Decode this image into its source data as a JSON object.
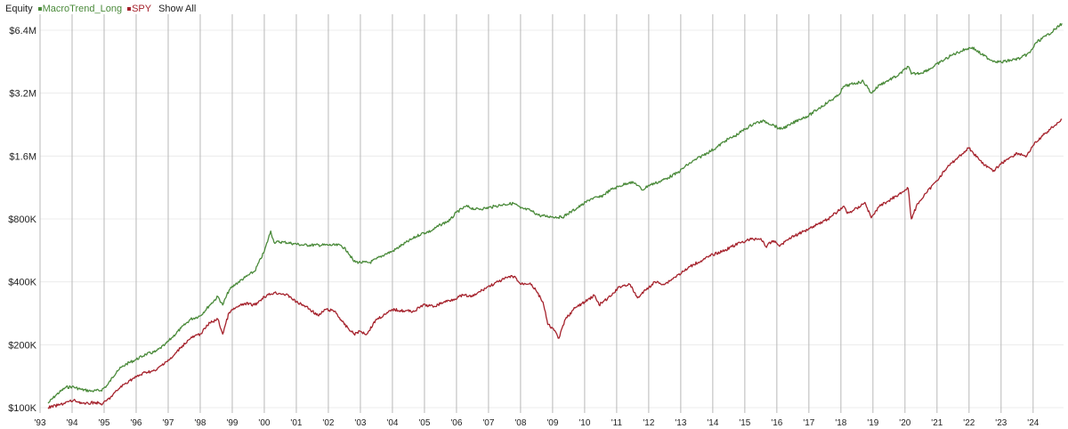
{
  "legend": {
    "title": "Equity",
    "series_labels": [
      "MacroTrend_Long",
      "SPY"
    ],
    "show_all": "Show All"
  },
  "colors": {
    "macrotrend": "#4a8a3a",
    "spy": "#a5222c",
    "gridline": "#b8b8b8",
    "hgrid": "#ececec"
  },
  "chart_data": {
    "type": "line",
    "y_scale": "log",
    "ylim": [
      100000,
      7200000
    ],
    "xlim": [
      1993.0,
      2024.95
    ],
    "ytick_values": [
      100000,
      200000,
      400000,
      800000,
      1600000,
      3200000,
      6400000
    ],
    "ytick_labels": [
      "$100K",
      "$200K",
      "$400K",
      "$800K",
      "$1.6M",
      "$3.2M",
      "$6.4M"
    ],
    "xtick_values": [
      1993,
      1994,
      1995,
      1996,
      1997,
      1998,
      1999,
      2000,
      2001,
      2002,
      2003,
      2004,
      2005,
      2006,
      2007,
      2008,
      2009,
      2010,
      2011,
      2012,
      2013,
      2014,
      2015,
      2016,
      2017,
      2018,
      2019,
      2020,
      2021,
      2022,
      2023,
      2024
    ],
    "xtick_labels": [
      "'93",
      "'94",
      "'95",
      "'96",
      "'97",
      "'98",
      "'99",
      "'00",
      "'01",
      "'02",
      "'03",
      "'04",
      "'05",
      "'06",
      "'07",
      "'08",
      "'09",
      "'10",
      "'11",
      "'12",
      "'13",
      "'14",
      "'15",
      "'16",
      "'17",
      "'18",
      "'19",
      "'20",
      "'21",
      "'22",
      "'23",
      "'24"
    ],
    "series": [
      {
        "name": "MacroTrend_Long",
        "points": [
          [
            1993.25,
            105000
          ],
          [
            1993.5,
            115000
          ],
          [
            1993.8,
            125000
          ],
          [
            1994.0,
            126000
          ],
          [
            1994.3,
            122000
          ],
          [
            1994.6,
            120000
          ],
          [
            1994.9,
            121000
          ],
          [
            1995.1,
            128000
          ],
          [
            1995.4,
            150000
          ],
          [
            1995.7,
            162000
          ],
          [
            1996.0,
            170000
          ],
          [
            1996.3,
            180000
          ],
          [
            1996.6,
            185000
          ],
          [
            1996.9,
            200000
          ],
          [
            1997.1,
            215000
          ],
          [
            1997.4,
            240000
          ],
          [
            1997.7,
            265000
          ],
          [
            1998.0,
            275000
          ],
          [
            1998.3,
            310000
          ],
          [
            1998.55,
            340000
          ],
          [
            1998.7,
            310000
          ],
          [
            1998.9,
            365000
          ],
          [
            1999.1,
            390000
          ],
          [
            1999.4,
            420000
          ],
          [
            1999.7,
            450000
          ],
          [
            2000.0,
            560000
          ],
          [
            2000.2,
            700000
          ],
          [
            2000.3,
            620000
          ],
          [
            2000.6,
            620000
          ],
          [
            2000.9,
            610000
          ],
          [
            2001.2,
            600000
          ],
          [
            2001.6,
            600000
          ],
          [
            2002.0,
            600000
          ],
          [
            2002.4,
            598000
          ],
          [
            2002.6,
            560000
          ],
          [
            2002.8,
            500000
          ],
          [
            2003.0,
            495000
          ],
          [
            2003.3,
            495000
          ],
          [
            2003.5,
            515000
          ],
          [
            2003.8,
            545000
          ],
          [
            2004.0,
            560000
          ],
          [
            2004.3,
            600000
          ],
          [
            2004.6,
            640000
          ],
          [
            2004.9,
            680000
          ],
          [
            2005.2,
            700000
          ],
          [
            2005.5,
            750000
          ],
          [
            2005.8,
            790000
          ],
          [
            2006.0,
            860000
          ],
          [
            2006.3,
            920000
          ],
          [
            2006.6,
            890000
          ],
          [
            2006.9,
            900000
          ],
          [
            2007.2,
            920000
          ],
          [
            2007.5,
            940000
          ],
          [
            2007.8,
            950000
          ],
          [
            2008.0,
            900000
          ],
          [
            2008.3,
            880000
          ],
          [
            2008.6,
            830000
          ],
          [
            2009.0,
            820000
          ],
          [
            2009.3,
            815000
          ],
          [
            2009.6,
            870000
          ],
          [
            2009.9,
            930000
          ],
          [
            2010.2,
            1000000
          ],
          [
            2010.5,
            1020000
          ],
          [
            2010.8,
            1100000
          ],
          [
            2011.1,
            1150000
          ],
          [
            2011.4,
            1200000
          ],
          [
            2011.6,
            1180000
          ],
          [
            2011.8,
            1100000
          ],
          [
            2012.0,
            1160000
          ],
          [
            2012.3,
            1200000
          ],
          [
            2012.6,
            1260000
          ],
          [
            2012.9,
            1330000
          ],
          [
            2013.2,
            1450000
          ],
          [
            2013.5,
            1550000
          ],
          [
            2013.8,
            1650000
          ],
          [
            2014.1,
            1750000
          ],
          [
            2014.4,
            1900000
          ],
          [
            2014.7,
            2000000
          ],
          [
            2015.0,
            2150000
          ],
          [
            2015.3,
            2300000
          ],
          [
            2015.6,
            2350000
          ],
          [
            2015.9,
            2250000
          ],
          [
            2016.1,
            2150000
          ],
          [
            2016.4,
            2250000
          ],
          [
            2016.7,
            2400000
          ],
          [
            2017.0,
            2500000
          ],
          [
            2017.3,
            2700000
          ],
          [
            2017.6,
            2900000
          ],
          [
            2017.9,
            3100000
          ],
          [
            2018.1,
            3450000
          ],
          [
            2018.4,
            3550000
          ],
          [
            2018.7,
            3650000
          ],
          [
            2018.95,
            3200000
          ],
          [
            2019.2,
            3500000
          ],
          [
            2019.5,
            3700000
          ],
          [
            2019.8,
            3900000
          ],
          [
            2020.1,
            4300000
          ],
          [
            2020.2,
            3950000
          ],
          [
            2020.5,
            4000000
          ],
          [
            2020.8,
            4200000
          ],
          [
            2021.1,
            4500000
          ],
          [
            2021.5,
            4900000
          ],
          [
            2021.9,
            5200000
          ],
          [
            2022.1,
            5300000
          ],
          [
            2022.4,
            4900000
          ],
          [
            2022.7,
            4600000
          ],
          [
            2023.0,
            4500000
          ],
          [
            2023.3,
            4600000
          ],
          [
            2023.6,
            4700000
          ],
          [
            2023.9,
            5000000
          ],
          [
            2024.1,
            5600000
          ],
          [
            2024.4,
            6000000
          ],
          [
            2024.7,
            6500000
          ],
          [
            2024.9,
            6900000
          ]
        ]
      },
      {
        "name": "SPY",
        "points": [
          [
            1993.25,
            100000
          ],
          [
            1993.6,
            103000
          ],
          [
            1993.9,
            107000
          ],
          [
            1994.1,
            108000
          ],
          [
            1994.4,
            104000
          ],
          [
            1994.7,
            106000
          ],
          [
            1994.95,
            104000
          ],
          [
            1995.2,
            112000
          ],
          [
            1995.5,
            125000
          ],
          [
            1995.8,
            135000
          ],
          [
            1996.0,
            140000
          ],
          [
            1996.3,
            148000
          ],
          [
            1996.6,
            150000
          ],
          [
            1996.9,
            165000
          ],
          [
            1997.1,
            172000
          ],
          [
            1997.4,
            195000
          ],
          [
            1997.7,
            215000
          ],
          [
            1998.0,
            225000
          ],
          [
            1998.3,
            255000
          ],
          [
            1998.55,
            265000
          ],
          [
            1998.7,
            225000
          ],
          [
            1998.9,
            285000
          ],
          [
            1999.1,
            300000
          ],
          [
            1999.4,
            315000
          ],
          [
            1999.7,
            310000
          ],
          [
            2000.0,
            340000
          ],
          [
            2000.3,
            355000
          ],
          [
            2000.6,
            350000
          ],
          [
            2000.8,
            340000
          ],
          [
            2001.0,
            320000
          ],
          [
            2001.3,
            305000
          ],
          [
            2001.7,
            275000
          ],
          [
            2001.9,
            295000
          ],
          [
            2002.2,
            290000
          ],
          [
            2002.5,
            250000
          ],
          [
            2002.8,
            225000
          ],
          [
            2003.0,
            232000
          ],
          [
            2003.2,
            225000
          ],
          [
            2003.5,
            265000
          ],
          [
            2003.8,
            280000
          ],
          [
            2004.0,
            295000
          ],
          [
            2004.4,
            290000
          ],
          [
            2004.7,
            290000
          ],
          [
            2004.95,
            310000
          ],
          [
            2005.3,
            305000
          ],
          [
            2005.6,
            320000
          ],
          [
            2005.9,
            330000
          ],
          [
            2006.2,
            345000
          ],
          [
            2006.5,
            340000
          ],
          [
            2006.8,
            365000
          ],
          [
            2007.0,
            380000
          ],
          [
            2007.3,
            400000
          ],
          [
            2007.6,
            420000
          ],
          [
            2007.8,
            425000
          ],
          [
            2008.0,
            390000
          ],
          [
            2008.3,
            395000
          ],
          [
            2008.5,
            360000
          ],
          [
            2008.7,
            320000
          ],
          [
            2008.85,
            250000
          ],
          [
            2009.0,
            240000
          ],
          [
            2009.2,
            215000
          ],
          [
            2009.4,
            265000
          ],
          [
            2009.7,
            300000
          ],
          [
            2010.0,
            320000
          ],
          [
            2010.3,
            345000
          ],
          [
            2010.45,
            310000
          ],
          [
            2010.8,
            340000
          ],
          [
            2011.1,
            380000
          ],
          [
            2011.4,
            390000
          ],
          [
            2011.65,
            335000
          ],
          [
            2011.9,
            365000
          ],
          [
            2012.2,
            400000
          ],
          [
            2012.5,
            390000
          ],
          [
            2012.8,
            420000
          ],
          [
            2013.1,
            450000
          ],
          [
            2013.4,
            485000
          ],
          [
            2013.7,
            510000
          ],
          [
            2014.0,
            540000
          ],
          [
            2014.3,
            560000
          ],
          [
            2014.6,
            590000
          ],
          [
            2014.9,
            620000
          ],
          [
            2015.2,
            640000
          ],
          [
            2015.5,
            645000
          ],
          [
            2015.65,
            590000
          ],
          [
            2015.9,
            630000
          ],
          [
            2016.1,
            595000
          ],
          [
            2016.4,
            650000
          ],
          [
            2016.7,
            680000
          ],
          [
            2017.0,
            720000
          ],
          [
            2017.3,
            760000
          ],
          [
            2017.6,
            800000
          ],
          [
            2017.9,
            870000
          ],
          [
            2018.1,
            920000
          ],
          [
            2018.2,
            850000
          ],
          [
            2018.5,
            900000
          ],
          [
            2018.75,
            960000
          ],
          [
            2018.95,
            810000
          ],
          [
            2019.2,
            920000
          ],
          [
            2019.5,
            980000
          ],
          [
            2019.8,
            1050000
          ],
          [
            2020.1,
            1120000
          ],
          [
            2020.2,
            800000
          ],
          [
            2020.4,
            950000
          ],
          [
            2020.7,
            1080000
          ],
          [
            2020.95,
            1200000
          ],
          [
            2021.3,
            1400000
          ],
          [
            2021.6,
            1550000
          ],
          [
            2021.9,
            1700000
          ],
          [
            2022.0,
            1750000
          ],
          [
            2022.3,
            1550000
          ],
          [
            2022.5,
            1450000
          ],
          [
            2022.75,
            1350000
          ],
          [
            2022.95,
            1450000
          ],
          [
            2023.2,
            1550000
          ],
          [
            2023.5,
            1650000
          ],
          [
            2023.8,
            1600000
          ],
          [
            2024.0,
            1800000
          ],
          [
            2024.3,
            2000000
          ],
          [
            2024.6,
            2200000
          ],
          [
            2024.9,
            2400000
          ]
        ]
      }
    ]
  }
}
